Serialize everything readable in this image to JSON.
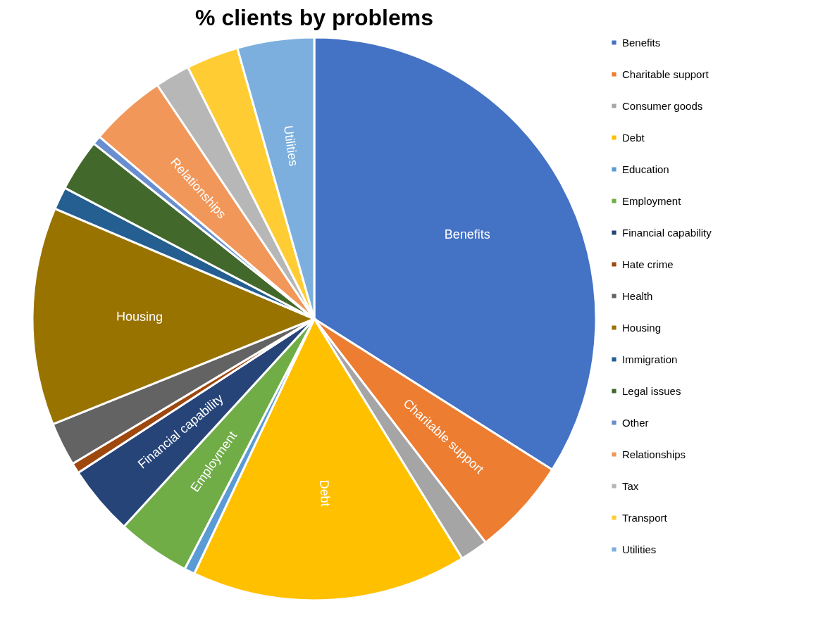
{
  "chart_data": {
    "type": "pie",
    "title": "% clients by problems",
    "categories": [
      "Benefits",
      "Charitable support",
      "Consumer goods",
      "Debt",
      "Education",
      "Employment",
      "Financial capability",
      "Hate crime",
      "Health",
      "Housing",
      "Immigration",
      "Legal issues",
      "Other",
      "Relationships",
      "Tax",
      "Transport",
      "Utilities"
    ],
    "values": [
      34.0,
      5.6,
      1.6,
      15.8,
      0.6,
      4.2,
      4.0,
      0.6,
      2.5,
      12.5,
      1.3,
      3.0,
      0.5,
      4.4,
      2.0,
      3.0,
      4.4
    ],
    "colors": [
      "#4472c4",
      "#ed7d31",
      "#a5a5a5",
      "#ffc000",
      "#5b9bd5",
      "#70ad47",
      "#264478",
      "#9e480e",
      "#636363",
      "#997300",
      "#255e91",
      "#43682b",
      "#698ed0",
      "#f1975a",
      "#b7b7b7",
      "#ffcd33",
      "#7cafdd"
    ],
    "value_labels": [
      "Benefits",
      "Charitable support",
      null,
      "Debt",
      null,
      "Employment",
      "Financial capability",
      null,
      null,
      "Housing",
      null,
      null,
      null,
      "Relationships",
      null,
      null,
      "Utilities"
    ],
    "legend": "right"
  }
}
